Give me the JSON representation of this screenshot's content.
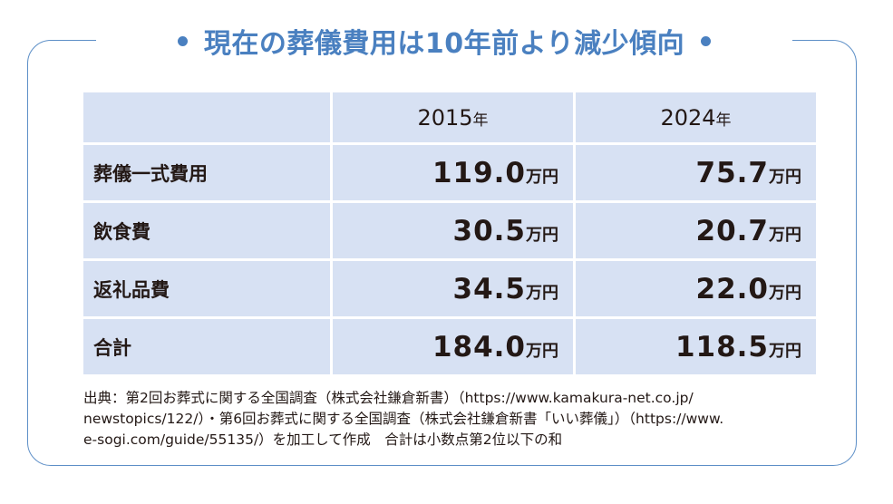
{
  "title": "現在の葬儀費用は10年前より減少傾向",
  "table": {
    "headers": [
      {
        "year": "2015",
        "suffix": "年"
      },
      {
        "year": "2024",
        "suffix": "年"
      }
    ],
    "unit": "万円",
    "rows": [
      {
        "label": "葬儀一式費用",
        "v2015": "119.0",
        "v2024": "75.7"
      },
      {
        "label": "飲食費",
        "v2015": "30.5",
        "v2024": "20.7"
      },
      {
        "label": "返礼品費",
        "v2015": "34.5",
        "v2024": "22.0"
      },
      {
        "label": "合計",
        "v2015": "184.0",
        "v2024": "118.5"
      }
    ]
  },
  "source": {
    "line1": "出典：第2回お葬式に関する全国調査（株式会社鎌倉新書）（https://www.kamakura-net.co.jp/",
    "line2": "newstopics/122/）・第6回お葬式に関する全国調査（株式会社鎌倉新書「いい葬儀」）（https://www.",
    "line3": "e-sogi.com/guide/55135/）を加工して作成　合計は小数点第2位以下の和"
  },
  "colors": {
    "accent": "#4a80c0",
    "cell_bg": "#d7e1f3",
    "frame": "#5d8fc7"
  }
}
